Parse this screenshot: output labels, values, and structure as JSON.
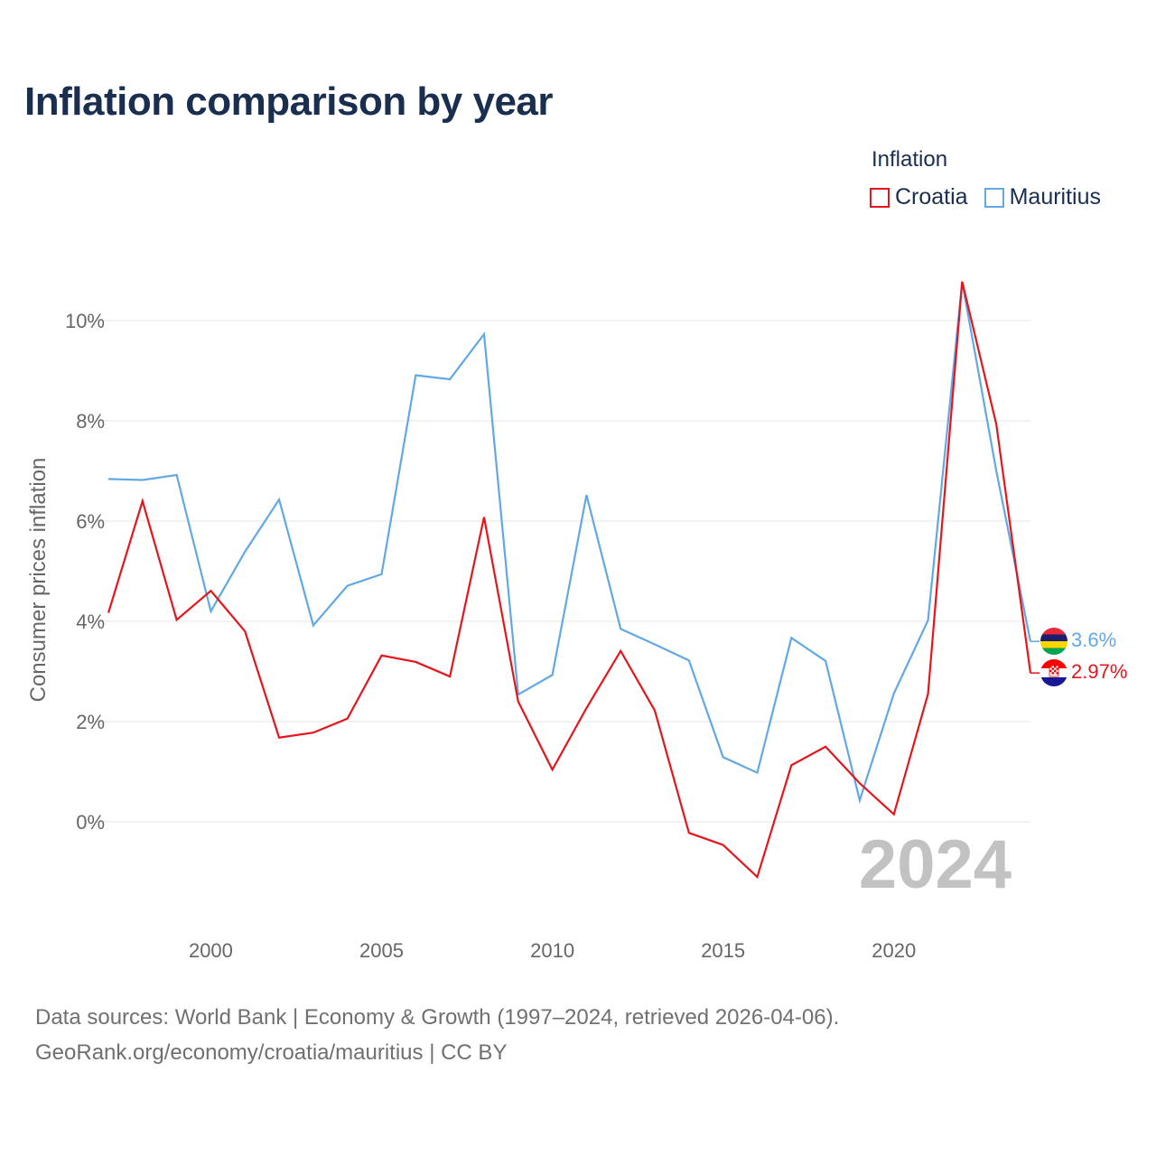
{
  "title": "Inflation comparison by year",
  "legend": {
    "title": "Inflation",
    "items": [
      {
        "label": "Croatia",
        "color": "#e8141b"
      },
      {
        "label": "Mauritius",
        "color": "#62a8e5"
      }
    ]
  },
  "chart_data": {
    "type": "line",
    "title": "Inflation comparison by year",
    "xlabel": "",
    "ylabel": "Consumer prices inflation",
    "xlim": [
      1997,
      2024
    ],
    "ylim": [
      -1.6,
      11
    ],
    "x_ticks": [
      2000,
      2005,
      2010,
      2015,
      2020
    ],
    "y_ticks": [
      0,
      2,
      4,
      6,
      8,
      10
    ],
    "y_tick_labels": [
      "0%",
      "2%",
      "4%",
      "6%",
      "8%",
      "10%"
    ],
    "grid": true,
    "year_watermark": "2024",
    "x": [
      1997,
      1998,
      1999,
      2000,
      2001,
      2002,
      2003,
      2004,
      2005,
      2006,
      2007,
      2008,
      2009,
      2010,
      2011,
      2012,
      2013,
      2014,
      2015,
      2016,
      2017,
      2018,
      2019,
      2020,
      2021,
      2022,
      2023,
      2024
    ],
    "series": [
      {
        "name": "Croatia",
        "color": "#e8141b",
        "end_label": "2.97%",
        "flag": "croatia",
        "values": [
          4.17,
          6.4,
          4.03,
          4.61,
          3.8,
          1.68,
          1.78,
          2.06,
          3.32,
          3.19,
          2.9,
          6.08,
          2.4,
          1.04,
          2.27,
          3.41,
          2.22,
          -0.22,
          -0.46,
          -1.1,
          1.13,
          1.5,
          0.77,
          0.15,
          2.55,
          10.78,
          7.93,
          2.97
        ]
      },
      {
        "name": "Mauritius",
        "color": "#62a8e5",
        "end_label": "3.6%",
        "flag": "mauritius",
        "values": [
          6.84,
          6.82,
          6.92,
          4.2,
          5.39,
          6.43,
          3.92,
          4.71,
          4.94,
          8.91,
          8.83,
          9.73,
          2.54,
          2.93,
          6.52,
          3.85,
          3.54,
          3.22,
          1.29,
          0.98,
          3.67,
          3.21,
          0.43,
          2.56,
          4.02,
          10.77,
          7.0,
          3.6
        ]
      }
    ]
  },
  "footer": {
    "line1": "Data sources: World Bank | Economy & Growth (1997–2024, retrieved 2026-04-06).",
    "line2": "GeoRank.org/economy/croatia/mauritius | CC BY"
  }
}
